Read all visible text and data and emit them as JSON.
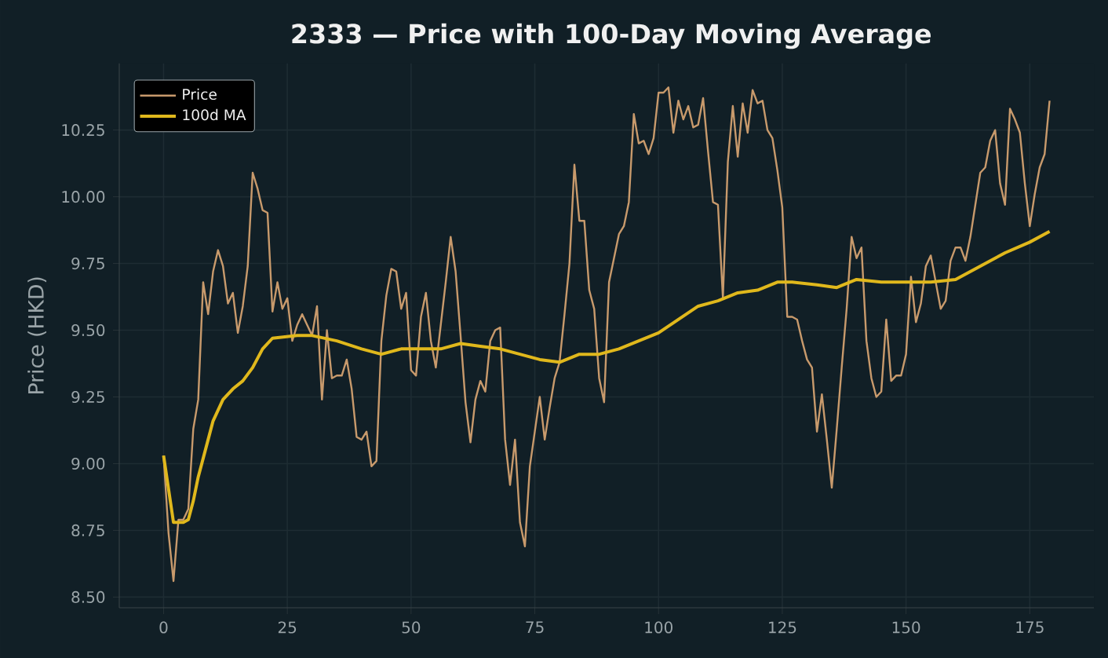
{
  "chart_data": {
    "type": "line",
    "title": "2333 — Price with 100-Day Moving Average",
    "ylabel": "Price (HKD)",
    "xlim": [
      -8.95,
      187.95
    ],
    "ylim": [
      8.46,
      10.5
    ],
    "xticks": [
      0,
      25,
      50,
      75,
      100,
      125,
      150,
      175
    ],
    "yticks": [
      {
        "value": 8.5,
        "label": "8.50"
      },
      {
        "value": 8.75,
        "label": "8.75"
      },
      {
        "value": 9.0,
        "label": "9.00"
      },
      {
        "value": 9.25,
        "label": "9.25"
      },
      {
        "value": 9.5,
        "label": "9.50"
      },
      {
        "value": 9.75,
        "label": "9.75"
      },
      {
        "value": 10.0,
        "label": "10.00"
      },
      {
        "value": 10.25,
        "label": "10.25"
      }
    ],
    "grid": true,
    "legend": "top left",
    "series": [
      {
        "name": "Price",
        "color": "#c89a6c",
        "x": [
          0,
          1,
          2,
          3,
          4,
          5,
          6,
          7,
          8,
          9,
          10,
          11,
          12,
          13,
          14,
          15,
          16,
          17,
          18,
          19,
          20,
          21,
          22,
          23,
          24,
          25,
          26,
          27,
          28,
          29,
          30,
          31,
          32,
          33,
          34,
          35,
          36,
          37,
          38,
          39,
          40,
          41,
          42,
          43,
          44,
          45,
          46,
          47,
          48,
          49,
          50,
          51,
          52,
          53,
          54,
          55,
          56,
          57,
          58,
          59,
          60,
          61,
          62,
          63,
          64,
          65,
          66,
          67,
          68,
          69,
          70,
          71,
          72,
          73,
          74,
          75,
          76,
          77,
          78,
          79,
          80,
          81,
          82,
          83,
          84,
          85,
          86,
          87,
          88,
          89,
          90,
          91,
          92,
          93,
          94,
          95,
          96,
          97,
          98,
          99,
          100,
          101,
          102,
          103,
          104,
          105,
          106,
          107,
          108,
          109,
          110,
          111,
          112,
          113,
          114,
          115,
          116,
          117,
          118,
          119,
          120,
          121,
          122,
          123,
          124,
          125,
          126,
          127,
          128,
          129,
          130,
          131,
          132,
          133,
          134,
          135,
          136,
          137,
          138,
          139,
          140,
          141,
          142,
          143,
          144,
          145,
          146,
          147,
          148,
          149,
          150,
          151,
          152,
          153,
          154,
          155,
          156,
          157,
          158,
          159,
          160,
          161,
          162,
          163,
          164,
          165,
          166,
          167,
          168,
          169,
          170,
          171,
          172,
          173,
          174,
          175,
          176,
          177,
          178,
          179
        ],
        "values": [
          9.03,
          8.74,
          8.56,
          8.79,
          8.79,
          8.83,
          9.13,
          9.24,
          9.68,
          9.56,
          9.72,
          9.8,
          9.74,
          9.6,
          9.64,
          9.49,
          9.59,
          9.74,
          10.09,
          10.03,
          9.95,
          9.94,
          9.57,
          9.68,
          9.58,
          9.62,
          9.46,
          9.52,
          9.56,
          9.52,
          9.48,
          9.59,
          9.24,
          9.5,
          9.32,
          9.33,
          9.33,
          9.39,
          9.28,
          9.1,
          9.09,
          9.12,
          8.99,
          9.01,
          9.46,
          9.63,
          9.73,
          9.72,
          9.58,
          9.64,
          9.35,
          9.33,
          9.55,
          9.64,
          9.46,
          9.36,
          9.52,
          9.68,
          9.85,
          9.72,
          9.48,
          9.23,
          9.08,
          9.24,
          9.31,
          9.27,
          9.46,
          9.5,
          9.51,
          9.09,
          8.92,
          9.09,
          8.78,
          8.69,
          8.99,
          9.12,
          9.25,
          9.09,
          9.21,
          9.32,
          9.38,
          9.56,
          9.75,
          10.12,
          9.91,
          9.91,
          9.65,
          9.58,
          9.32,
          9.23,
          9.68,
          9.77,
          9.86,
          9.89,
          9.98,
          10.31,
          10.2,
          10.21,
          10.16,
          10.22,
          10.39,
          10.39,
          10.41,
          10.24,
          10.36,
          10.29,
          10.34,
          10.26,
          10.27,
          10.37,
          10.17,
          9.98,
          9.97,
          9.62,
          10.13,
          10.34,
          10.15,
          10.35,
          10.24,
          10.4,
          10.35,
          10.36,
          10.25,
          10.22,
          10.1,
          9.96,
          9.55,
          9.55,
          9.54,
          9.46,
          9.39,
          9.36,
          9.12,
          9.26,
          9.09,
          8.91,
          9.13,
          9.36,
          9.58,
          9.85,
          9.77,
          9.81,
          9.46,
          9.32,
          9.25,
          9.27,
          9.54,
          9.31,
          9.33,
          9.33,
          9.41,
          9.7,
          9.53,
          9.6,
          9.74,
          9.78,
          9.68,
          9.58,
          9.61,
          9.76,
          9.81,
          9.81,
          9.76,
          9.85,
          9.97,
          10.09,
          10.11,
          10.21,
          10.25,
          10.05,
          9.97,
          10.33,
          10.29,
          10.24,
          10.05,
          9.89,
          10.01,
          10.11,
          10.16,
          10.36
        ]
      },
      {
        "name": "100d MA",
        "color": "#e0b81c",
        "x": [
          0,
          2,
          4,
          5,
          6,
          7,
          9,
          10,
          12,
          14,
          16,
          18,
          20,
          22,
          27,
          30,
          35,
          40,
          44,
          48,
          52,
          56,
          60,
          64,
          68,
          72,
          76,
          80,
          84,
          88,
          92,
          96,
          100,
          104,
          108,
          112,
          116,
          120,
          124,
          127,
          132,
          136,
          140,
          145,
          150,
          155,
          160,
          165,
          170,
          175,
          179
        ],
        "values": [
          9.03,
          8.78,
          8.78,
          8.79,
          8.86,
          8.95,
          9.09,
          9.16,
          9.24,
          9.28,
          9.31,
          9.36,
          9.43,
          9.47,
          9.48,
          9.48,
          9.46,
          9.43,
          9.41,
          9.43,
          9.43,
          9.43,
          9.45,
          9.44,
          9.43,
          9.41,
          9.39,
          9.38,
          9.41,
          9.41,
          9.43,
          9.46,
          9.49,
          9.54,
          9.59,
          9.61,
          9.64,
          9.65,
          9.68,
          9.68,
          9.67,
          9.66,
          9.69,
          9.68,
          9.68,
          9.68,
          9.69,
          9.74,
          9.79,
          9.83,
          9.87
        ]
      }
    ]
  }
}
